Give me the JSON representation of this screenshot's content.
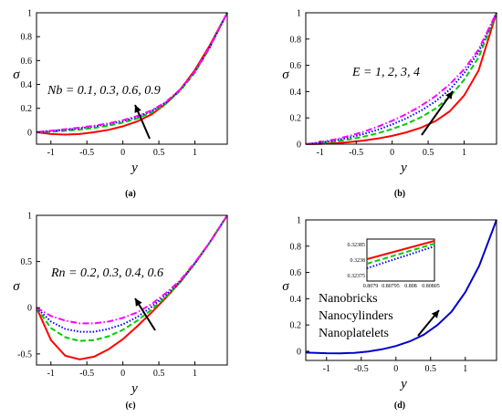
{
  "chart_data": [
    {
      "type": "line",
      "caption": "(a)",
      "xlabel": "y",
      "ylabel": "σ",
      "xlim": [
        -1.2,
        1.45
      ],
      "ylim": [
        -0.1,
        1
      ],
      "xticks": [
        "-1",
        "-0.5",
        "0",
        "0.5",
        "1"
      ],
      "yticks": [
        "0",
        "0.2",
        "0.4",
        "0.6",
        "0.8",
        "1"
      ],
      "annotation": "Nb = 0.1, 0.3, 0.6, 0.9",
      "x": [
        -1.2,
        -1.0,
        -0.8,
        -0.6,
        -0.4,
        -0.2,
        0.0,
        0.2,
        0.4,
        0.6,
        0.8,
        1.0,
        1.2,
        1.45
      ],
      "series": [
        {
          "color": "#ff0000",
          "dash": "solid",
          "values": [
            0.0,
            -0.015,
            -0.02,
            -0.015,
            0.0,
            0.02,
            0.05,
            0.09,
            0.15,
            0.24,
            0.36,
            0.52,
            0.72,
            1.0
          ]
        },
        {
          "color": "#00cc00",
          "dash": "dashed",
          "values": [
            0.0,
            0.005,
            0.012,
            0.022,
            0.036,
            0.055,
            0.08,
            0.115,
            0.165,
            0.24,
            0.35,
            0.5,
            0.7,
            1.0
          ]
        },
        {
          "color": "#0000ff",
          "dash": "dotted",
          "values": [
            0.0,
            0.01,
            0.02,
            0.032,
            0.048,
            0.068,
            0.093,
            0.128,
            0.177,
            0.25,
            0.355,
            0.505,
            0.705,
            1.0
          ]
        },
        {
          "color": "#ff00ff",
          "dash": "dashdot",
          "values": [
            0.0,
            0.013,
            0.025,
            0.038,
            0.054,
            0.074,
            0.1,
            0.135,
            0.183,
            0.255,
            0.36,
            0.508,
            0.707,
            1.0
          ]
        }
      ]
    },
    {
      "type": "line",
      "caption": "(b)",
      "xlabel": "y",
      "ylabel": "σ",
      "xlim": [
        -1.2,
        1.45
      ],
      "ylim": [
        0,
        1
      ],
      "xticks": [
        "-1",
        "-0.5",
        "0",
        "0.5",
        "1"
      ],
      "yticks": [
        "0",
        "0.2",
        "0.4",
        "0.6",
        "0.8",
        "1"
      ],
      "annotation": "E = 1, 2, 3, 4",
      "x": [
        -1.2,
        -1.0,
        -0.8,
        -0.6,
        -0.4,
        -0.2,
        0.0,
        0.2,
        0.4,
        0.6,
        0.8,
        1.0,
        1.2,
        1.45
      ],
      "series": [
        {
          "color": "#ff0000",
          "dash": "solid",
          "values": [
            0.0,
            0.002,
            0.007,
            0.015,
            0.027,
            0.043,
            0.063,
            0.09,
            0.125,
            0.175,
            0.25,
            0.37,
            0.56,
            1.0
          ]
        },
        {
          "color": "#00cc00",
          "dash": "dashed",
          "values": [
            0.0,
            0.008,
            0.02,
            0.036,
            0.057,
            0.083,
            0.115,
            0.155,
            0.205,
            0.27,
            0.36,
            0.49,
            0.66,
            1.0
          ]
        },
        {
          "color": "#0000ff",
          "dash": "dotted",
          "values": [
            0.0,
            0.012,
            0.028,
            0.05,
            0.077,
            0.11,
            0.15,
            0.197,
            0.255,
            0.325,
            0.415,
            0.54,
            0.7,
            1.0
          ]
        },
        {
          "color": "#ff00ff",
          "dash": "dashdot",
          "values": [
            0.0,
            0.016,
            0.036,
            0.062,
            0.094,
            0.133,
            0.178,
            0.23,
            0.292,
            0.365,
            0.455,
            0.57,
            0.72,
            1.0
          ]
        }
      ]
    },
    {
      "type": "line",
      "caption": "(c)",
      "xlabel": "y",
      "ylabel": "σ",
      "xlim": [
        -1.2,
        1.45
      ],
      "ylim": [
        -0.62,
        1
      ],
      "xticks": [
        "-1",
        "-0.5",
        "0",
        "0.5",
        "1"
      ],
      "yticks": [
        "-0.5",
        "0",
        "0.5",
        "1"
      ],
      "annotation": "Rn = 0.2, 0.3, 0.4, 0.6",
      "x": [
        -1.2,
        -1.0,
        -0.8,
        -0.6,
        -0.4,
        -0.2,
        0.0,
        0.2,
        0.4,
        0.6,
        0.8,
        1.0,
        1.2,
        1.45
      ],
      "series": [
        {
          "color": "#ff0000",
          "dash": "solid",
          "values": [
            0.0,
            -0.35,
            -0.52,
            -0.56,
            -0.53,
            -0.45,
            -0.34,
            -0.2,
            -0.05,
            0.11,
            0.28,
            0.48,
            0.7,
            1.0
          ]
        },
        {
          "color": "#00cc00",
          "dash": "dashed",
          "values": [
            0.0,
            -0.22,
            -0.32,
            -0.36,
            -0.35,
            -0.31,
            -0.24,
            -0.14,
            -0.02,
            0.12,
            0.28,
            0.48,
            0.7,
            1.0
          ]
        },
        {
          "color": "#0000ff",
          "dash": "dotted",
          "values": [
            0.0,
            -0.15,
            -0.23,
            -0.26,
            -0.26,
            -0.23,
            -0.18,
            -0.1,
            0.01,
            0.14,
            0.29,
            0.48,
            0.7,
            1.0
          ]
        },
        {
          "color": "#ff00ff",
          "dash": "dashdot",
          "values": [
            0.0,
            -0.09,
            -0.14,
            -0.17,
            -0.17,
            -0.15,
            -0.11,
            -0.05,
            0.04,
            0.16,
            0.3,
            0.49,
            0.7,
            1.0
          ]
        }
      ]
    },
    {
      "type": "line",
      "caption": "(d)",
      "xlabel": "y",
      "ylabel": "σ",
      "xlim": [
        -1.3,
        1.45
      ],
      "ylim": [
        -0.07,
        1
      ],
      "xticks": [
        "-1",
        "-0.5",
        "0",
        "0.5",
        "1"
      ],
      "yticks": [
        "0",
        "0.2",
        "0.4",
        "0.6",
        "0.8",
        "1"
      ],
      "legend": [
        "Nanobricks",
        "Nanocylinders",
        "Nanoplatelets"
      ],
      "x": [
        -1.3,
        -1.0,
        -0.8,
        -0.6,
        -0.4,
        -0.2,
        0.0,
        0.2,
        0.4,
        0.6,
        0.8,
        1.0,
        1.2,
        1.45
      ],
      "series": [
        {
          "color": "#0000cc",
          "dash": "solid",
          "values": [
            -0.01,
            -0.015,
            -0.016,
            -0.012,
            -0.002,
            0.015,
            0.04,
            0.075,
            0.125,
            0.2,
            0.3,
            0.45,
            0.65,
            1.0
          ]
        }
      ],
      "inset": {
        "xticks": [
          "0.8079",
          "0.80795",
          "0.808",
          "0.80805"
        ],
        "yticks": [
          "0.32375",
          "0.3238",
          "0.32385"
        ],
        "series": [
          {
            "color": "#ff0000",
            "dash": "solid"
          },
          {
            "color": "#00cc00",
            "dash": "dashed"
          },
          {
            "color": "#0000ff",
            "dash": "dotted"
          }
        ]
      }
    }
  ]
}
